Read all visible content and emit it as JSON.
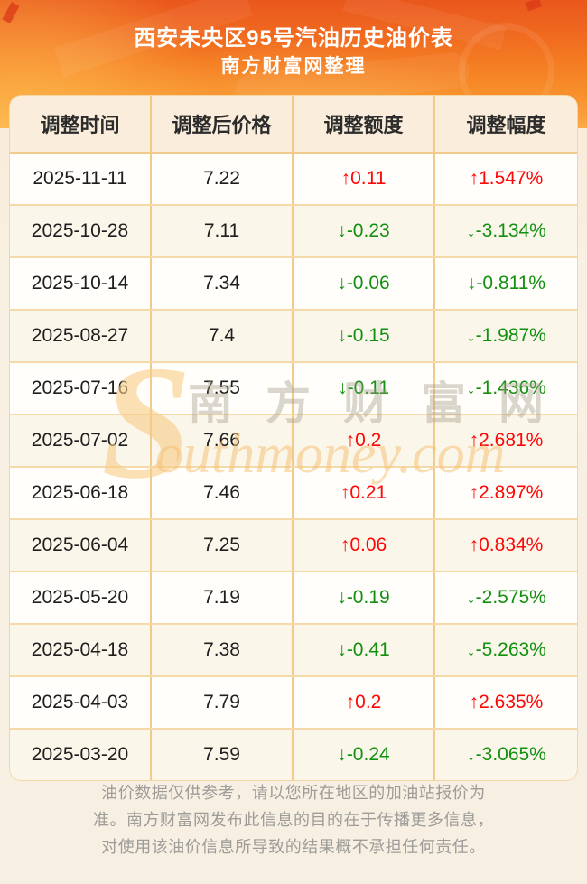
{
  "page": {
    "title": "西安未央区95号汽油历史油价表",
    "subtitle": "南方财富网整理"
  },
  "colors": {
    "hero_orange_top": "#e9571c",
    "hero_orange_bottom": "#fcab46",
    "table_header_bg": "#faeddb",
    "zebra_cream": "#fbf6ea",
    "border_tan": "#f0cb8c",
    "up_red": "#fe0606",
    "down_green": "#12900f",
    "footer_gray": "#9d9c98"
  },
  "table": {
    "columns": [
      "调整时间",
      "调整后价格",
      "调整额度",
      "调整幅度"
    ],
    "rows": [
      {
        "date": "2025-11-11",
        "price": "7.22",
        "change": "↑0.11",
        "pct": "↑1.547%",
        "dir": "up"
      },
      {
        "date": "2025-10-28",
        "price": "7.11",
        "change": "↓-0.23",
        "pct": "↓-3.134%",
        "dir": "down"
      },
      {
        "date": "2025-10-14",
        "price": "7.34",
        "change": "↓-0.06",
        "pct": "↓-0.811%",
        "dir": "down"
      },
      {
        "date": "2025-08-27",
        "price": "7.4",
        "change": "↓-0.15",
        "pct": "↓-1.987%",
        "dir": "down"
      },
      {
        "date": "2025-07-16",
        "price": "7.55",
        "change": "↓-0.11",
        "pct": "↓-1.436%",
        "dir": "down"
      },
      {
        "date": "2025-07-02",
        "price": "7.66",
        "change": "↑0.2",
        "pct": "↑2.681%",
        "dir": "up"
      },
      {
        "date": "2025-06-18",
        "price": "7.46",
        "change": "↑0.21",
        "pct": "↑2.897%",
        "dir": "up"
      },
      {
        "date": "2025-06-04",
        "price": "7.25",
        "change": "↑0.06",
        "pct": "↑0.834%",
        "dir": "up"
      },
      {
        "date": "2025-05-20",
        "price": "7.19",
        "change": "↓-0.19",
        "pct": "↓-2.575%",
        "dir": "down"
      },
      {
        "date": "2025-04-18",
        "price": "7.38",
        "change": "↓-0.41",
        "pct": "↓-5.263%",
        "dir": "down"
      },
      {
        "date": "2025-04-03",
        "price": "7.79",
        "change": "↑0.2",
        "pct": "↑2.635%",
        "dir": "up"
      },
      {
        "date": "2025-03-20",
        "price": "7.59",
        "change": "↓-0.24",
        "pct": "↓-3.065%",
        "dir": "down"
      }
    ]
  },
  "watermark": {
    "s": "S",
    "cn": "南方财富网",
    "en": "outhmoney.com"
  },
  "footer": {
    "lines": [
      "油价数据仅供参考，请以您所在地区的加油站报价为",
      "准。南方财富网发布此信息的目的在于传播更多信息，",
      "对使用该油价信息所导致的结果概不承担任何责任。"
    ]
  }
}
